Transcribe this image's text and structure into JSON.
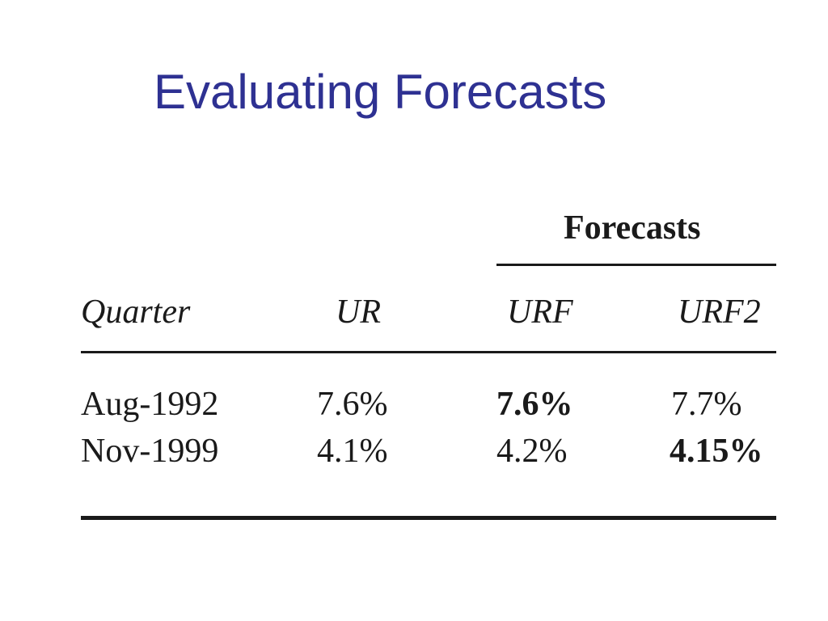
{
  "slide": {
    "title": "Evaluating Forecasts",
    "title_color": "#2e3192"
  },
  "table": {
    "group_header": "Forecasts",
    "columns": [
      "Quarter",
      "UR",
      "URF",
      "URF2"
    ],
    "rows": [
      {
        "quarter": "Aug-1992",
        "ur": "7.6%",
        "urf": "7.6%",
        "urf2": "7.7%",
        "bold_column": "URF"
      },
      {
        "quarter": "Nov-1999",
        "ur": "4.1%",
        "urf": "4.2%",
        "urf2": "4.15%",
        "bold_column": "URF2"
      }
    ]
  }
}
